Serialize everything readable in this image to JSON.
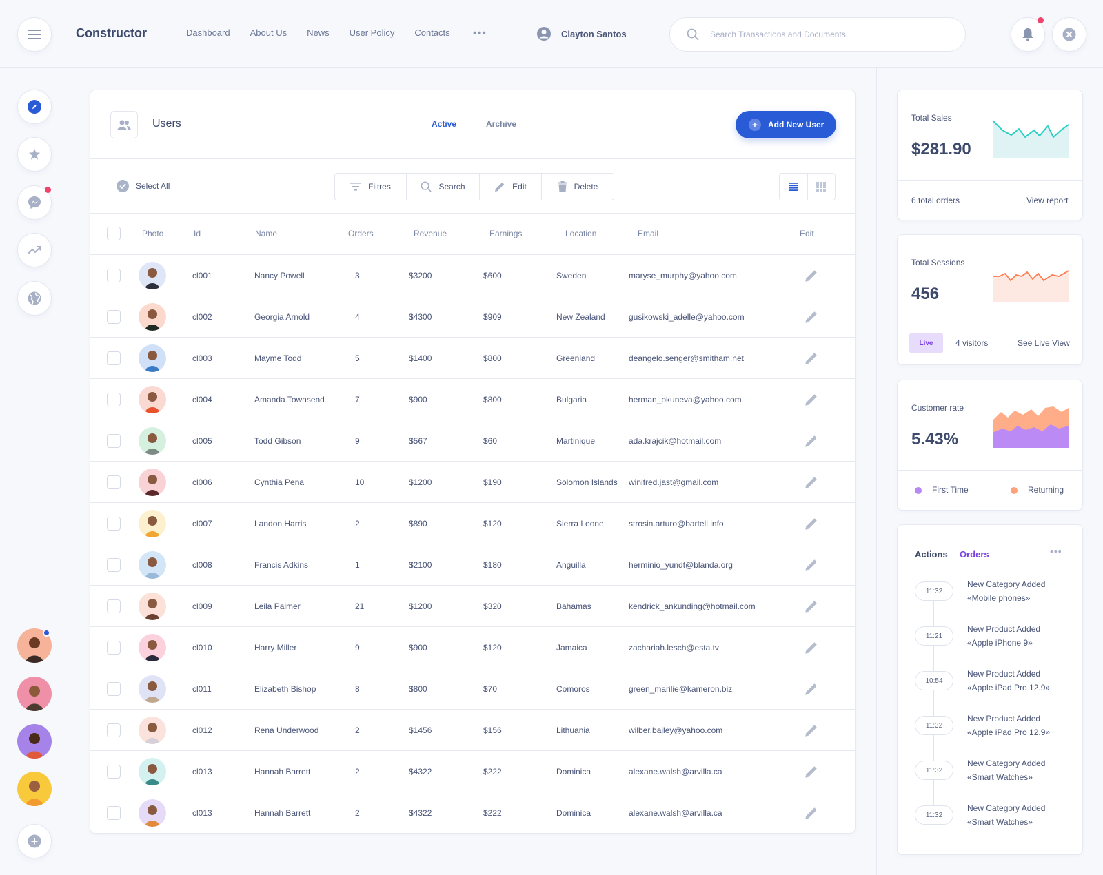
{
  "header": {
    "brand": "Constructor",
    "nav": [
      "Dashboard",
      "About Us",
      "News",
      "User Policy",
      "Contacts"
    ],
    "more": "•••",
    "user_name": "Clayton Santos",
    "search_placeholder": "Search Transactions and Documents"
  },
  "colors": {
    "accent": "#2a5bd7",
    "sales_line": "#2ccfc4",
    "sessions_line": "#ff7a4d",
    "first_time": "#b889f5",
    "returning": "#ffa27a",
    "notification": "#f0436a"
  },
  "main": {
    "title": "Users",
    "tabs": [
      {
        "label": "Active",
        "active": true
      },
      {
        "label": "Archive",
        "active": false
      }
    ],
    "add_button": "Add New User",
    "select_all": "Select All",
    "toolbar": [
      "Filtres",
      "Search",
      "Edit",
      "Delete"
    ],
    "columns": [
      "Photo",
      "Id",
      "Name",
      "Orders",
      "Revenue",
      "Earnings",
      "Location",
      "Email",
      "Edit"
    ],
    "rows": [
      {
        "id": "cl001",
        "name": "Nancy Powell",
        "orders": "3",
        "revenue": "$3200",
        "earnings": "$600",
        "location": "Sweden",
        "email": "maryse_murphy@yahoo.com"
      },
      {
        "id": "cl002",
        "name": "Georgia Arnold",
        "orders": "4",
        "revenue": "$4300",
        "earnings": "$909",
        "location": "New Zealand",
        "email": "gusikowski_adelle@yahoo.com"
      },
      {
        "id": "cl003",
        "name": "Mayme Todd",
        "orders": "5",
        "revenue": "$1400",
        "earnings": "$800",
        "location": "Greenland",
        "email": "deangelo.senger@smitham.net"
      },
      {
        "id": "cl004",
        "name": "Amanda Townsend",
        "orders": "7",
        "revenue": "$900",
        "earnings": "$800",
        "location": "Bulgaria",
        "email": "herman_okuneva@yahoo.com"
      },
      {
        "id": "cl005",
        "name": "Todd Gibson",
        "orders": "9",
        "revenue": "$567",
        "earnings": "$60",
        "location": "Martinique",
        "email": "ada.krajcik@hotmail.com"
      },
      {
        "id": "cl006",
        "name": "Cynthia Pena",
        "orders": "10",
        "revenue": "$1200",
        "earnings": "$190",
        "location": "Solomon Islands",
        "email": "winifred.jast@gmail.com"
      },
      {
        "id": "cl007",
        "name": "Landon Harris",
        "orders": "2",
        "revenue": "$890",
        "earnings": "$120",
        "location": "Sierra Leone",
        "email": "strosin.arturo@bartell.info"
      },
      {
        "id": "cl008",
        "name": "Francis Adkins",
        "orders": "1",
        "revenue": "$2100",
        "earnings": "$180",
        "location": "Anguilla",
        "email": "herminio_yundt@blanda.org"
      },
      {
        "id": "cl009",
        "name": "Leila Palmer",
        "orders": "21",
        "revenue": "$1200",
        "earnings": "$320",
        "location": "Bahamas",
        "email": "kendrick_ankunding@hotmail.com"
      },
      {
        "id": "cl010",
        "name": "Harry Miller",
        "orders": "9",
        "revenue": "$900",
        "earnings": "$120",
        "location": "Jamaica",
        "email": "zachariah.lesch@esta.tv"
      },
      {
        "id": "cl011",
        "name": "Elizabeth Bishop",
        "orders": "8",
        "revenue": "$800",
        "earnings": "$70",
        "location": "Comoros",
        "email": "green_marilie@kameron.biz"
      },
      {
        "id": "cl012",
        "name": "Rena Underwood",
        "orders": "2",
        "revenue": "$1456",
        "earnings": "$156",
        "location": "Lithuania",
        "email": "wilber.bailey@yahoo.com"
      },
      {
        "id": "cl013",
        "name": "Hannah Barrett",
        "orders": "2",
        "revenue": "$4322",
        "earnings": "$222",
        "location": "Dominica",
        "email": "alexane.walsh@arvilla.ca"
      },
      {
        "id": "cl013",
        "name": "Hannah Barrett",
        "orders": "2",
        "revenue": "$4322",
        "earnings": "$222",
        "location": "Dominica",
        "email": "alexane.walsh@arvilla.ca"
      }
    ]
  },
  "stats": {
    "sales": {
      "label": "Total Sales",
      "value": "$281.90",
      "orders": "6 total orders",
      "link": "View report"
    },
    "sessions": {
      "label": "Total Sessions",
      "value": "456",
      "badge": "Live",
      "visitors": "4 visitors",
      "link": "See Live View"
    },
    "customer": {
      "label": "Customer rate",
      "value": "5.43%",
      "legend": [
        "First Time",
        "Returning"
      ]
    }
  },
  "actions": {
    "tabs": [
      "Actions",
      "Orders"
    ],
    "more": "•••",
    "events": [
      {
        "time": "11:32",
        "title": "New Category Added",
        "detail": "«Mobile phones»"
      },
      {
        "time": "11:21",
        "title": "New Product Added",
        "detail": "«Apple iPhone 9»"
      },
      {
        "time": "10:54",
        "title": "New Product Added",
        "detail": "«Apple iPad Pro 12.9»"
      },
      {
        "time": "11:32",
        "title": "New Product Added",
        "detail": "«Apple iPad Pro 12.9»"
      },
      {
        "time": "11:32",
        "title": "New Category Added",
        "detail": "«Smart Watches»"
      },
      {
        "time": "11:32",
        "title": "New Category Added",
        "detail": "«Smart Watches»"
      }
    ]
  }
}
